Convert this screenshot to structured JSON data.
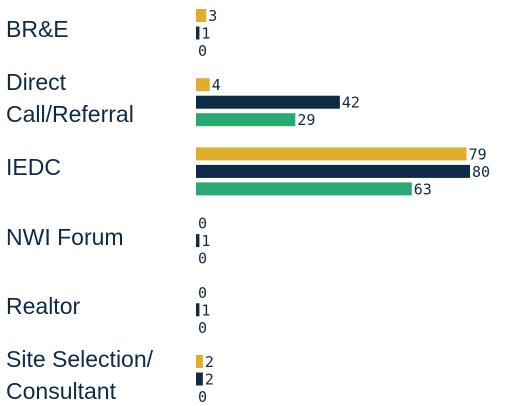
{
  "chart_data": {
    "type": "hbar",
    "categories": [
      "BR&E",
      "Direct\nCall/Referral",
      "IEDC",
      "NWI Forum",
      "Realtor",
      "Site Selection/\nConsultant"
    ],
    "series": [
      {
        "color": "#e0ae2c",
        "values": [
          3,
          4,
          79,
          0,
          0,
          2
        ]
      },
      {
        "color": "#0d2a47",
        "values": [
          1,
          42,
          80,
          1,
          1,
          2
        ]
      },
      {
        "color": "#2aaa72",
        "values": [
          0,
          29,
          63,
          0,
          0,
          0
        ]
      }
    ]
  }
}
